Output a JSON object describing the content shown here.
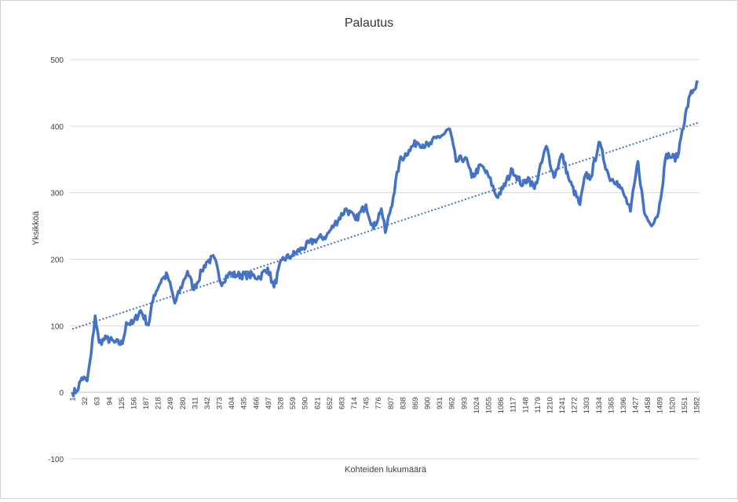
{
  "chart_data": {
    "type": "line",
    "title": "Palautus",
    "xlabel": "Kohteiden lukumäärä",
    "ylabel": "Yksikköä",
    "ylim": [
      -100,
      500
    ],
    "yticks": [
      -100,
      0,
      100,
      200,
      300,
      400,
      500
    ],
    "xlim": [
      1,
      1590
    ],
    "xticks": [
      1,
      32,
      63,
      94,
      125,
      156,
      187,
      218,
      249,
      280,
      311,
      342,
      373,
      404,
      435,
      466,
      497,
      528,
      559,
      590,
      621,
      652,
      683,
      714,
      745,
      776,
      807,
      838,
      869,
      900,
      931,
      962,
      993,
      1024,
      1055,
      1086,
      1117,
      1148,
      1179,
      1210,
      1241,
      1272,
      1303,
      1334,
      1365,
      1396,
      1427,
      1458,
      1489,
      1520,
      1551,
      1582
    ],
    "grid": true,
    "legend": "none",
    "series": [
      {
        "name": "Palautus",
        "color": "#4472C4",
        "x": [
          1,
          13,
          25,
          39,
          49,
          59,
          69,
          88,
          108,
          128,
          138,
          154,
          174,
          194,
          208,
          228,
          242,
          261,
          281,
          293,
          309,
          329,
          341,
          361,
          377,
          397,
          417,
          446,
          476,
          496,
          512,
          532,
          556,
          586,
          615,
          645,
          665,
          695,
          719,
          745,
          764,
          784,
          794,
          814,
          830,
          854,
          874,
          904,
          923,
          943,
          957,
          973,
          997,
          1013,
          1037,
          1057,
          1076,
          1092,
          1116,
          1142,
          1156,
          1172,
          1202,
          1221,
          1241,
          1261,
          1287,
          1301,
          1315,
          1335,
          1361,
          1381,
          1401,
          1415,
          1434,
          1450,
          1466,
          1486,
          1506,
          1520,
          1534,
          1546,
          1566,
          1586
        ],
        "y": [
          0,
          2,
          22,
          17,
          58,
          115,
          75,
          81,
          75,
          73,
          105,
          103,
          123,
          101,
          146,
          170,
          176,
          134,
          164,
          182,
          154,
          182,
          196,
          202,
          164,
          178,
          176,
          176,
          173,
          187,
          158,
          199,
          205,
          217,
          229,
          235,
          252,
          276,
          259,
          282,
          246,
          276,
          240,
          293,
          347,
          364,
          376,
          370,
          382,
          388,
          396,
          347,
          353,
          323,
          341,
          323,
          294,
          306,
          335,
          311,
          323,
          306,
          370,
          323,
          358,
          317,
          282,
          327,
          323,
          376,
          323,
          317,
          294,
          272,
          347,
          270,
          252,
          270,
          358,
          353,
          353,
          394,
          447,
          465
        ]
      },
      {
        "name": "Linear trend",
        "color": "#4472C4",
        "style": "dotted",
        "x": [
          1,
          1590
        ],
        "y": [
          95,
          406
        ]
      }
    ]
  }
}
